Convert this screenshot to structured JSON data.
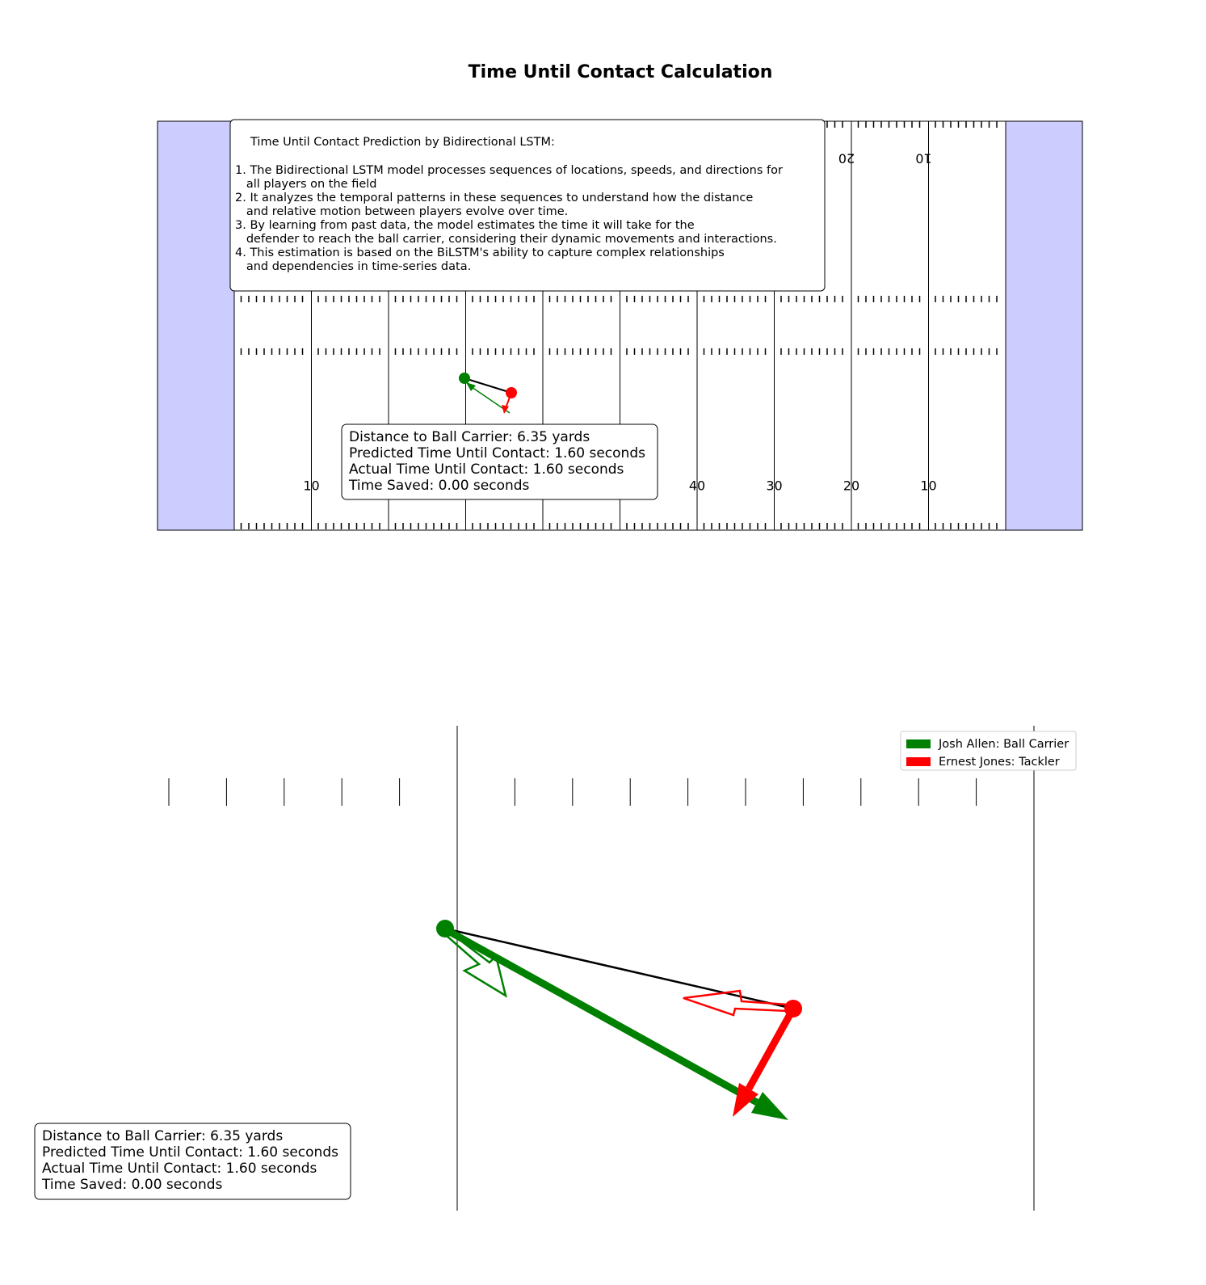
{
  "title": "Time Until Contact Calculation",
  "explanation": {
    "heading": "Time Until Contact Prediction by Bidirectional LSTM:",
    "lines": [
      "1. The Bidirectional LSTM model processes sequences of locations, speeds, and directions for",
      "   all players on the field",
      "2. It analyzes the temporal patterns in these sequences to understand how the distance",
      "   and relative motion between players evolve over time.",
      "3. By learning from past data, the model estimates the time it will take for the",
      "   defender to reach the ball carrier, considering their dynamic movements and interactions.",
      "4. This estimation is based on the BiLSTM's ability to capture complex relationships",
      "   and dependencies in time-series data."
    ]
  },
  "field": {
    "bottom_yard_labels": [
      {
        "text": "10",
        "line": 1
      },
      {
        "text": "40",
        "line": 6
      },
      {
        "text": "30",
        "line": 7
      },
      {
        "text": "20",
        "line": 8
      },
      {
        "text": "10",
        "line": 9
      }
    ],
    "top_yard_labels": [
      {
        "text": "20",
        "line": 8
      },
      {
        "text": "10",
        "line": 9
      }
    ]
  },
  "stats_top": [
    "Distance to Ball Carrier: 6.35 yards",
    "Predicted Time Until Contact: 1.60 seconds",
    "Actual Time Until Contact: 1.60 seconds",
    "Time Saved: 0.00 seconds"
  ],
  "stats_bottom": [
    "Distance to Ball Carrier: 6.35 yards",
    "Predicted Time Until Contact: 1.60 seconds",
    "Actual Time Until Contact: 1.60 seconds",
    "Time Saved: 0.00 seconds"
  ],
  "legend": [
    {
      "label": "Josh Allen: Ball Carrier",
      "color": "#008000"
    },
    {
      "label": "Ernest Jones: Tackler",
      "color": "#ff0000"
    }
  ]
}
